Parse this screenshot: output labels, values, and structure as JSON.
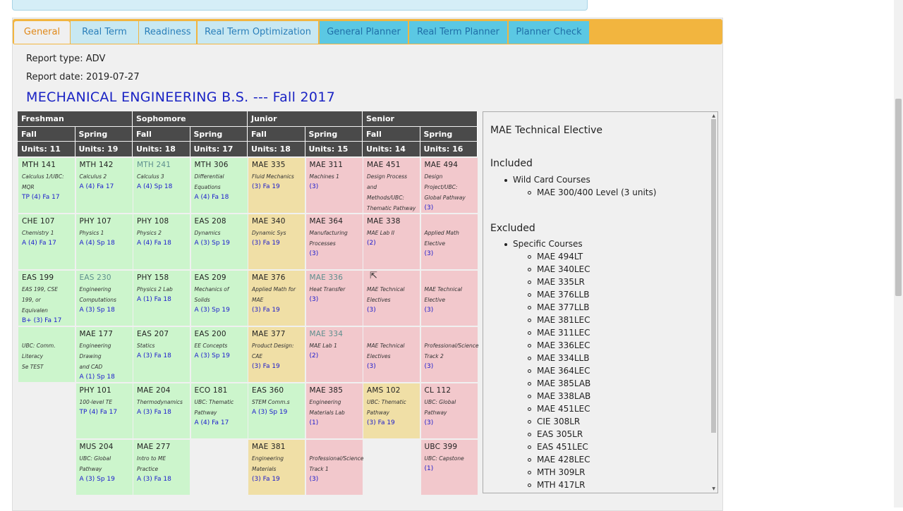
{
  "tabs": [
    {
      "label": "General",
      "state": "active"
    },
    {
      "label": "Real Term",
      "state": "inactive"
    },
    {
      "label": "Readiness",
      "state": "inactive"
    },
    {
      "label": "Real Term Optimization",
      "state": "inactive"
    },
    {
      "label": "General Planner",
      "state": "blue"
    },
    {
      "label": "Real Term Planner",
      "state": "blue"
    },
    {
      "label": "Planner Check",
      "state": "blue"
    }
  ],
  "report": {
    "type_label": "Report type: ADV",
    "date_label": "Report date: 2019-07-27",
    "program_title": "MECHANICAL ENGINEERING B.S. --- Fall 2017"
  },
  "grid": {
    "years": [
      "Freshman",
      "Sophomore",
      "Junior",
      "Senior"
    ],
    "terms": [
      "Fall",
      "Spring",
      "Fall",
      "Spring",
      "Fall",
      "Spring",
      "Fall",
      "Spring"
    ],
    "units": [
      "Units: 11",
      "Units: 19",
      "Units: 18",
      "Units: 17",
      "Units: 18",
      "Units: 15",
      "Units: 14",
      "Units: 16"
    ],
    "colors": {
      "green": "#ccf5cc",
      "tan": "#f0dfa6",
      "pink": "#f2c8cc"
    },
    "cells": [
      {
        "col": 0,
        "row": 0,
        "color": "green",
        "code": "MTH 141",
        "desc": [
          "Calculus 1/UBC: MQR"
        ],
        "grade": "TP (4) Fa 17"
      },
      {
        "col": 1,
        "row": 0,
        "color": "green",
        "code": "MTH 142",
        "desc": [
          "Calculus 2"
        ],
        "grade": "A (4) Fa 17"
      },
      {
        "col": 2,
        "row": 0,
        "color": "green",
        "code": "MTH 241",
        "muted": true,
        "desc": [
          "Calculus 3"
        ],
        "grade": "A (4) Sp 18"
      },
      {
        "col": 3,
        "row": 0,
        "color": "green",
        "code": "MTH 306",
        "desc": [
          "Differential",
          "Equations"
        ],
        "grade": "A (4) Fa 18"
      },
      {
        "col": 4,
        "row": 0,
        "color": "tan",
        "code": "MAE 335",
        "desc": [
          "Fluid Mechanics"
        ],
        "grade": "(3) Fa 19"
      },
      {
        "col": 5,
        "row": 0,
        "color": "pink",
        "code": "MAE 311",
        "desc": [
          "Machines 1"
        ],
        "grade": "(3)"
      },
      {
        "col": 6,
        "row": 0,
        "color": "pink",
        "code": "MAE 451",
        "desc": [
          "Design Process and",
          "Methods/UBC:",
          "Thematic Pathway"
        ],
        "grade": "(3)"
      },
      {
        "col": 7,
        "row": 0,
        "color": "pink",
        "code": "MAE 494",
        "desc": [
          "Design Project/UBC:",
          "Global Pathway"
        ],
        "grade": "(3)"
      },
      {
        "col": 0,
        "row": 1,
        "color": "green",
        "code": "CHE 107",
        "desc": [
          "Chemistry 1"
        ],
        "grade": "A (4) Fa 17"
      },
      {
        "col": 1,
        "row": 1,
        "color": "green",
        "code": "PHY 107",
        "desc": [
          "Physics 1"
        ],
        "grade": "A (4) Sp 18"
      },
      {
        "col": 2,
        "row": 1,
        "color": "green",
        "code": "PHY 108",
        "desc": [
          "Physics 2"
        ],
        "grade": "A (4) Fa 18"
      },
      {
        "col": 3,
        "row": 1,
        "color": "green",
        "code": "EAS 208",
        "desc": [
          "Dynamics"
        ],
        "grade": "A (3) Sp 19"
      },
      {
        "col": 4,
        "row": 1,
        "color": "tan",
        "code": "MAE 340",
        "desc": [
          "Dynamic Sys"
        ],
        "grade": "(3) Fa 19"
      },
      {
        "col": 5,
        "row": 1,
        "color": "pink",
        "code": "MAE 364",
        "desc": [
          "Manufacturing",
          "Processes"
        ],
        "grade": "(3)"
      },
      {
        "col": 6,
        "row": 1,
        "color": "pink",
        "code": "MAE 338",
        "desc": [
          "MAE Lab II"
        ],
        "grade": "(2)"
      },
      {
        "col": 7,
        "row": 1,
        "color": "pink",
        "code": "",
        "desc": [
          "Applied Math",
          "Elective"
        ],
        "grade": "(3)"
      },
      {
        "col": 0,
        "row": 2,
        "color": "green",
        "code": "EAS 199",
        "desc": [
          "EAS 199, CSE 199, or",
          "Equivalen"
        ],
        "grade": "B+ (3) Fa 17"
      },
      {
        "col": 1,
        "row": 2,
        "color": "green",
        "code": "EAS 230",
        "muted": true,
        "desc": [
          "Engineering",
          "Computations"
        ],
        "grade": "A (3) Sp 18"
      },
      {
        "col": 2,
        "row": 2,
        "color": "green",
        "code": "PHY 158",
        "desc": [
          "Physics 2 Lab"
        ],
        "grade": "A (1) Fa 18"
      },
      {
        "col": 3,
        "row": 2,
        "color": "green",
        "code": "EAS 209",
        "desc": [
          "Mechanics of Solids"
        ],
        "grade": "A (3) Sp 19"
      },
      {
        "col": 4,
        "row": 2,
        "color": "tan",
        "code": "MAE 376",
        "desc": [
          "Applied Math for",
          "MAE"
        ],
        "grade": "(3) Fa 19"
      },
      {
        "col": 5,
        "row": 2,
        "color": "pink",
        "code": "MAE 336",
        "muted": true,
        "desc": [
          "Heat Transfer"
        ],
        "grade": "(3)"
      },
      {
        "col": 6,
        "row": 2,
        "color": "pink",
        "code": "",
        "desc": [
          "MAE Technical",
          "Electives"
        ],
        "grade": "(3)"
      },
      {
        "col": 7,
        "row": 2,
        "color": "pink",
        "code": "",
        "desc": [
          "MAE Technical",
          "Elective"
        ],
        "grade": "(3)"
      },
      {
        "col": 0,
        "row": 3,
        "color": "green",
        "code": "",
        "desc": [
          "UBC: Comm. Literacy",
          "Se TEST"
        ],
        "grade": ""
      },
      {
        "col": 1,
        "row": 3,
        "color": "green",
        "code": "MAE 177",
        "desc": [
          "Engineering Drawing",
          "and CAD"
        ],
        "grade": "A (1) Sp 18"
      },
      {
        "col": 2,
        "row": 3,
        "color": "green",
        "code": "EAS 207",
        "desc": [
          "Statics"
        ],
        "grade": "A (3) Fa 18"
      },
      {
        "col": 3,
        "row": 3,
        "color": "green",
        "code": "EAS 200",
        "desc": [
          "EE Concepts"
        ],
        "grade": "A (3) Sp 19"
      },
      {
        "col": 4,
        "row": 3,
        "color": "tan",
        "code": "MAE 377",
        "desc": [
          "Product Design: CAE"
        ],
        "grade": "(3) Fa 19"
      },
      {
        "col": 5,
        "row": 3,
        "color": "pink",
        "code": "MAE 334",
        "muted": true,
        "desc": [
          "MAE Lab 1"
        ],
        "grade": "(2)"
      },
      {
        "col": 6,
        "row": 3,
        "color": "pink",
        "code": "",
        "desc": [
          "MAE Technical",
          "Electives"
        ],
        "grade": "(3)"
      },
      {
        "col": 7,
        "row": 3,
        "color": "pink",
        "code": "",
        "desc": [
          "Professional/Science",
          "Track 2"
        ],
        "grade": "(3)"
      },
      {
        "col": 1,
        "row": 4,
        "color": "green",
        "code": "PHY 101",
        "desc": [
          "100-level TE"
        ],
        "grade": "TP (4) Fa 17"
      },
      {
        "col": 2,
        "row": 4,
        "color": "green",
        "code": "MAE 204",
        "desc": [
          "Thermodynamics"
        ],
        "grade": "A (3) Fa 18"
      },
      {
        "col": 3,
        "row": 4,
        "color": "green",
        "code": "ECO 181",
        "desc": [
          "UBC: Thematic",
          "Pathway"
        ],
        "grade": "A (4) Fa 17"
      },
      {
        "col": 4,
        "row": 4,
        "color": "green",
        "code": "EAS 360",
        "desc": [
          "STEM Comm.s"
        ],
        "grade": "A (3) Sp 19"
      },
      {
        "col": 5,
        "row": 4,
        "color": "pink",
        "code": "MAE 385",
        "desc": [
          "Engineering",
          "Materials Lab"
        ],
        "grade": "(1)"
      },
      {
        "col": 6,
        "row": 4,
        "color": "tan",
        "code": "AMS 102",
        "desc": [
          "UBC: Thematic",
          "Pathway"
        ],
        "grade": "(3) Fa 19"
      },
      {
        "col": 7,
        "row": 4,
        "color": "pink",
        "code": "CL 112",
        "desc": [
          "UBC: Global Pathway"
        ],
        "grade": "(3)"
      },
      {
        "col": 1,
        "row": 5,
        "color": "green",
        "code": "MUS 204",
        "desc": [
          "UBC: Global Pathway"
        ],
        "grade": "A (3) Sp 19"
      },
      {
        "col": 2,
        "row": 5,
        "color": "green",
        "code": "MAE 277",
        "desc": [
          "Intro to ME Practice"
        ],
        "grade": "A (3) Fa 18"
      },
      {
        "col": 4,
        "row": 5,
        "color": "tan",
        "code": "MAE 381",
        "desc": [
          "Engineering",
          "Materials"
        ],
        "grade": "(3) Fa 19"
      },
      {
        "col": 5,
        "row": 5,
        "color": "pink",
        "code": "",
        "desc": [
          "Professional/Science",
          "Track 1"
        ],
        "grade": "(3)"
      },
      {
        "col": 7,
        "row": 5,
        "color": "pink",
        "code": "UBC 399",
        "desc": [
          "UBC: Capstone"
        ],
        "grade": "(1)"
      }
    ]
  },
  "side_panel": {
    "title": "MAE Technical Elective",
    "included_heading": "Included",
    "included_group": "Wild Card Courses",
    "included_items": [
      "MAE 300/400 Level (3 units)"
    ],
    "excluded_heading": "Excluded",
    "excluded_group": "Specific Courses",
    "excluded_items": [
      "MAE 494LT",
      "MAE 340LEC",
      "MAE 335LR",
      "MAE 376LLB",
      "MAE 377LLB",
      "MAE 381LEC",
      "MAE 311LEC",
      "MAE 336LEC",
      "MAE 334LLB",
      "MAE 364LEC",
      "MAE 385LAB",
      "MAE 338LAB",
      "MAE 451LEC",
      "CIE 308LR",
      "EAS 305LR",
      "EAS 451LEC",
      "MAE 428LEC",
      "MTH 309LR",
      "MTH 417LR"
    ]
  }
}
